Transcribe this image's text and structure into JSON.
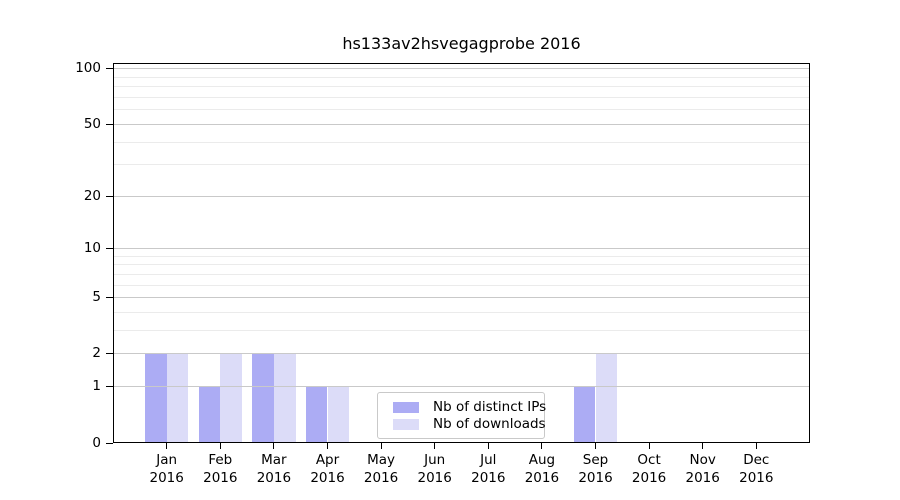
{
  "chart_data": {
    "type": "bar",
    "title": "hs133av2hsvegagprobe 2016",
    "categories": [
      "Jan",
      "Feb",
      "Mar",
      "Apr",
      "May",
      "Jun",
      "Jul",
      "Aug",
      "Sep",
      "Oct",
      "Nov",
      "Dec"
    ],
    "tick_year": "2016",
    "series": [
      {
        "name": "Nb of distinct IPs",
        "color": "#acacf4",
        "values": [
          2,
          1,
          2,
          1,
          0,
          0,
          0,
          0,
          1,
          0,
          0,
          0
        ]
      },
      {
        "name": "Nb of downloads",
        "color": "#dcdcf8",
        "values": [
          2,
          2,
          2,
          1,
          0,
          0,
          0,
          0,
          2,
          0,
          0,
          0
        ]
      }
    ],
    "yscale": "log1p",
    "ylim": [
      0,
      108
    ],
    "y_ticks": [
      0,
      1,
      2,
      5,
      10,
      20,
      50,
      100
    ],
    "y_minor_gridlines": [
      3,
      4,
      6,
      7,
      8,
      9,
      30,
      40,
      60,
      70,
      80,
      90
    ],
    "grid": true,
    "legend_position": "lower-center",
    "xlabel": "",
    "ylabel": ""
  },
  "colors": {
    "background": "#ffffff",
    "axis": "#000000",
    "grid_major": "#c9c9c9",
    "grid_minor": "#ebebeb",
    "bar_distinct_ips": "#acacf4",
    "bar_downloads": "#dcdcf8",
    "legend_border": "#c9c9c9"
  }
}
